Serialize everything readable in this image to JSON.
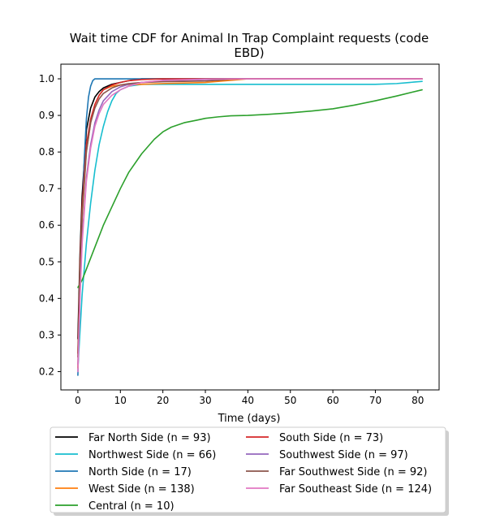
{
  "chart_data": {
    "type": "line",
    "title_line1": "Wait time CDF for Animal In Trap Complaint  requests (code",
    "title_line2": "EBD)",
    "xlabel": "Time (days)",
    "ylabel": "",
    "xlim": [
      -4,
      85
    ],
    "ylim": [
      0.15,
      1.04
    ],
    "xticks": [
      0,
      10,
      20,
      30,
      40,
      50,
      60,
      70,
      80
    ],
    "yticks": [
      0.2,
      0.3,
      0.4,
      0.5,
      0.6,
      0.7,
      0.8,
      0.9,
      1.0
    ],
    "ytick_labels": [
      "0.2",
      "0.3",
      "0.4",
      "0.5",
      "0.6",
      "0.7",
      "0.8",
      "0.9",
      "1.0"
    ],
    "grid": false,
    "legend_position": "bottom-outside",
    "series": [
      {
        "name": "Far North Side (n = 93)",
        "color": "#000000",
        "x": [
          0,
          0.5,
          1,
          2,
          3,
          4,
          5,
          6,
          8,
          10,
          12,
          15,
          20,
          30,
          40,
          60,
          81
        ],
        "y": [
          0.29,
          0.52,
          0.68,
          0.86,
          0.92,
          0.95,
          0.965,
          0.975,
          0.985,
          0.99,
          0.995,
          1.0,
          1.0,
          1.0,
          1.0,
          1.0,
          1.0
        ]
      },
      {
        "name": "Northwest Side (n = 66)",
        "color": "#17becf",
        "x": [
          0,
          1,
          2,
          3,
          4,
          5,
          6,
          7,
          8,
          9,
          10,
          12,
          15,
          20,
          40,
          60,
          70,
          75,
          78,
          81
        ],
        "y": [
          0.21,
          0.41,
          0.55,
          0.66,
          0.75,
          0.82,
          0.87,
          0.91,
          0.94,
          0.96,
          0.97,
          0.98,
          0.985,
          0.985,
          0.985,
          0.985,
          0.985,
          0.987,
          0.99,
          0.993
        ]
      },
      {
        "name": "North Side (n = 17)",
        "color": "#1f77b4",
        "x": [
          0,
          0.5,
          1,
          1.5,
          2,
          2.5,
          3,
          3.5,
          4,
          5,
          10,
          20,
          40,
          60,
          81
        ],
        "y": [
          0.19,
          0.42,
          0.62,
          0.78,
          0.89,
          0.95,
          0.98,
          0.995,
          1.0,
          1.0,
          1.0,
          1.0,
          1.0,
          1.0,
          1.0
        ]
      },
      {
        "name": "West Side (n = 138)",
        "color": "#ff7f0e",
        "x": [
          0,
          0.5,
          1,
          2,
          3,
          4,
          5,
          6,
          8,
          10,
          15,
          20,
          30,
          35,
          40,
          60,
          81
        ],
        "y": [
          0.21,
          0.46,
          0.62,
          0.8,
          0.88,
          0.93,
          0.955,
          0.97,
          0.98,
          0.983,
          0.985,
          0.987,
          0.99,
          0.995,
          1.0,
          1.0,
          1.0
        ]
      },
      {
        "name": "Central (n = 10)",
        "color": "#2ca02c",
        "x": [
          0,
          1,
          2,
          4,
          6,
          8,
          10,
          12,
          15,
          18,
          20,
          22,
          25,
          28,
          30,
          33,
          36,
          40,
          45,
          50,
          55,
          60,
          65,
          70,
          75,
          81
        ],
        "y": [
          0.43,
          0.45,
          0.48,
          0.54,
          0.6,
          0.65,
          0.7,
          0.745,
          0.795,
          0.835,
          0.855,
          0.868,
          0.88,
          0.887,
          0.892,
          0.896,
          0.899,
          0.9,
          0.903,
          0.907,
          0.912,
          0.918,
          0.928,
          0.94,
          0.953,
          0.97
        ]
      },
      {
        "name": "South Side (n = 73)",
        "color": "#d62728",
        "x": [
          0,
          0.5,
          1,
          2,
          3,
          4,
          5,
          6,
          8,
          10,
          12,
          15,
          20,
          30,
          40,
          60,
          81
        ],
        "y": [
          0.25,
          0.5,
          0.65,
          0.82,
          0.89,
          0.93,
          0.955,
          0.97,
          0.983,
          0.99,
          0.995,
          0.998,
          1.0,
          1.0,
          1.0,
          1.0,
          1.0
        ]
      },
      {
        "name": "Southwest Side (n = 97)",
        "color": "#9467bd",
        "x": [
          0,
          0.5,
          1,
          2,
          3,
          4,
          5,
          6,
          8,
          10,
          12,
          15,
          20,
          30,
          40,
          60,
          81
        ],
        "y": [
          0.22,
          0.42,
          0.56,
          0.73,
          0.82,
          0.88,
          0.915,
          0.94,
          0.965,
          0.978,
          0.985,
          0.99,
          0.995,
          0.998,
          1.0,
          1.0,
          1.0
        ]
      },
      {
        "name": "Far Southwest Side (n = 92)",
        "color": "#8c564b",
        "x": [
          0,
          0.5,
          1,
          2,
          3,
          4,
          5,
          6,
          8,
          10,
          12,
          15,
          20,
          25,
          30,
          33,
          36,
          40,
          60,
          81
        ],
        "y": [
          0.24,
          0.48,
          0.63,
          0.8,
          0.88,
          0.92,
          0.945,
          0.96,
          0.975,
          0.983,
          0.987,
          0.99,
          0.992,
          0.993,
          0.994,
          0.996,
          0.999,
          1.0,
          1.0,
          1.0
        ]
      },
      {
        "name": "Far Southeast Side (n = 124)",
        "color": "#e377c2",
        "x": [
          0,
          0.5,
          1,
          2,
          3,
          4,
          5,
          6,
          8,
          10,
          12,
          15,
          20,
          30,
          40,
          60,
          81
        ],
        "y": [
          0.2,
          0.4,
          0.55,
          0.72,
          0.81,
          0.87,
          0.905,
          0.93,
          0.955,
          0.97,
          0.98,
          0.99,
          0.996,
          0.999,
          1.0,
          1.0,
          1.0
        ]
      }
    ]
  }
}
